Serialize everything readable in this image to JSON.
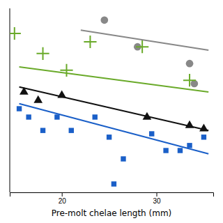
{
  "chart_data": {
    "type": "scatter",
    "xlabel": "Pre-molt chelae length (mm)",
    "xlim": [
      14.5,
      36
    ],
    "ylim": [
      -1.5,
      9.5
    ],
    "xticks": [
      20,
      30
    ],
    "tick_labels": "x",
    "grid": false,
    "series": [
      {
        "type": "scatter",
        "marker": "circle",
        "color": "#888888",
        "x": [
          24.5,
          28.0,
          33.5,
          34.0
        ],
        "values": [
          8.8,
          7.2,
          6.2,
          5.0
        ]
      },
      {
        "type": "scatter",
        "marker": "plus",
        "color": "#6aaa2a",
        "x": [
          15.0,
          18.0,
          20.5,
          23.0,
          28.5,
          33.5
        ],
        "values": [
          8.0,
          6.8,
          5.8,
          7.5,
          7.2,
          5.2
        ]
      },
      {
        "type": "scatter",
        "marker": "triangle",
        "color": "#111111",
        "x": [
          16.0,
          17.5,
          20.0,
          29.0,
          33.5,
          35.0
        ],
        "values": [
          4.5,
          4.0,
          4.3,
          3.0,
          2.5,
          2.3
        ]
      },
      {
        "type": "scatter",
        "marker": "square",
        "color": "#1a5fc8",
        "x": [
          15.5,
          16.5,
          18.0,
          19.5,
          21.0,
          23.5,
          25.0,
          26.5,
          29.5,
          31.0,
          32.5,
          33.5,
          35.0,
          25.5
        ],
        "values": [
          3.5,
          3.0,
          2.2,
          3.0,
          2.2,
          3.0,
          1.8,
          0.5,
          2.0,
          1.0,
          1.0,
          1.3,
          1.8,
          -1.0
        ]
      },
      {
        "type": "line",
        "color": "#888888",
        "x": [
          22.0,
          35.5
        ],
        "values": [
          8.2,
          7.0
        ]
      },
      {
        "type": "line",
        "color": "#6aaa2a",
        "x": [
          15.5,
          35.5
        ],
        "values": [
          6.0,
          4.5
        ]
      },
      {
        "type": "line",
        "color": "#111111",
        "x": [
          15.5,
          35.5
        ],
        "values": [
          4.8,
          2.2
        ]
      },
      {
        "type": "line",
        "color": "#1a5fc8",
        "x": [
          15.5,
          35.5
        ],
        "values": [
          3.8,
          0.8
        ]
      }
    ]
  }
}
